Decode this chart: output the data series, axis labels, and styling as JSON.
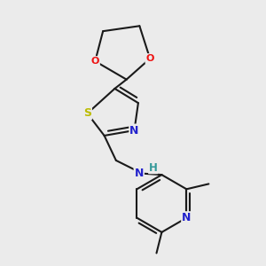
{
  "background_color": "#ebebeb",
  "bond_color": "#1a1a1a",
  "atom_colors": {
    "O": "#ee1111",
    "N": "#2222cc",
    "S": "#bbbb00",
    "H": "#339999",
    "C": "#1a1a1a"
  },
  "figsize": [
    3.0,
    3.0
  ],
  "dpi": 100
}
